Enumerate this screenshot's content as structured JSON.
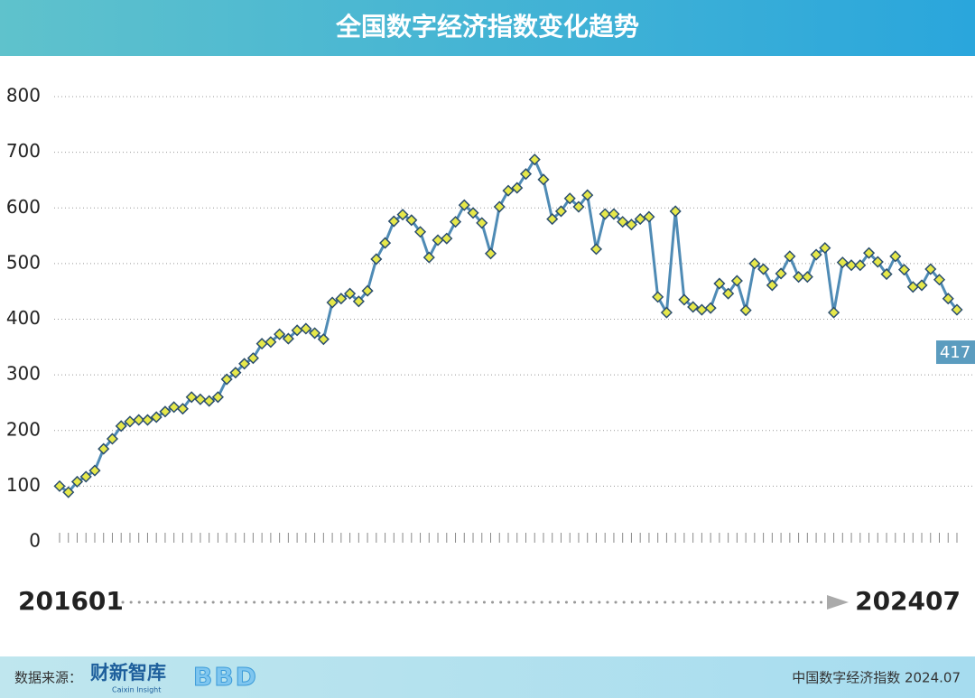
{
  "chart_data": {
    "type": "line",
    "title": "全国数字经济指数变化趋势",
    "categories": [
      "201601",
      null,
      null,
      null,
      null,
      null,
      null,
      null,
      null,
      null,
      null,
      null,
      null,
      null,
      null,
      null,
      null,
      null,
      null,
      null,
      null,
      null,
      null,
      null,
      null,
      null,
      null,
      null,
      null,
      null,
      null,
      null,
      null,
      null,
      null,
      null,
      null,
      null,
      null,
      null,
      null,
      null,
      null,
      null,
      null,
      null,
      null,
      null,
      null,
      null,
      null,
      null,
      null,
      null,
      null,
      null,
      null,
      null,
      null,
      null,
      null,
      null,
      null,
      null,
      null,
      null,
      null,
      null,
      null,
      null,
      null,
      null,
      null,
      null,
      null,
      null,
      null,
      null,
      null,
      null,
      null,
      null,
      null,
      null,
      null,
      null,
      null,
      null,
      null,
      null,
      null,
      null,
      null,
      null,
      null,
      null,
      null,
      null,
      null,
      null,
      null,
      null,
      "202407"
    ],
    "values": [
      100,
      89,
      108,
      117,
      128,
      167,
      185,
      208,
      216,
      219,
      219,
      224,
      234,
      242,
      239,
      260,
      256,
      253,
      260,
      292,
      304,
      320,
      330,
      356,
      359,
      373,
      365,
      380,
      383,
      375,
      364,
      430,
      437,
      446,
      432,
      451,
      508,
      537,
      576,
      588,
      578,
      557,
      511,
      542,
      545,
      575,
      605,
      591,
      573,
      518,
      602,
      631,
      636,
      661,
      687,
      651,
      580,
      594,
      617,
      602,
      623,
      526,
      589,
      589,
      575,
      570,
      580,
      584,
      440,
      412,
      594,
      435,
      422,
      417,
      420,
      464,
      446,
      469,
      416,
      500,
      490,
      461,
      482,
      513,
      476,
      476,
      516,
      528,
      412,
      502,
      497,
      497,
      519,
      503,
      481,
      513,
      489,
      458,
      461,
      490,
      471,
      437,
      417
    ],
    "color": "#4f8bb5",
    "marker_color": "#e6e84a",
    "ylim": [
      0,
      800
    ],
    "yticks": [
      0,
      100,
      200,
      300,
      400,
      500,
      600,
      700,
      800
    ],
    "grid": true
  },
  "footer": {
    "source_label": "数据来源：",
    "brand": "财新智库",
    "brand_sub": "Caixin Insight",
    "partner": "BBD",
    "note": "中国数字经济指数 2024.07"
  }
}
